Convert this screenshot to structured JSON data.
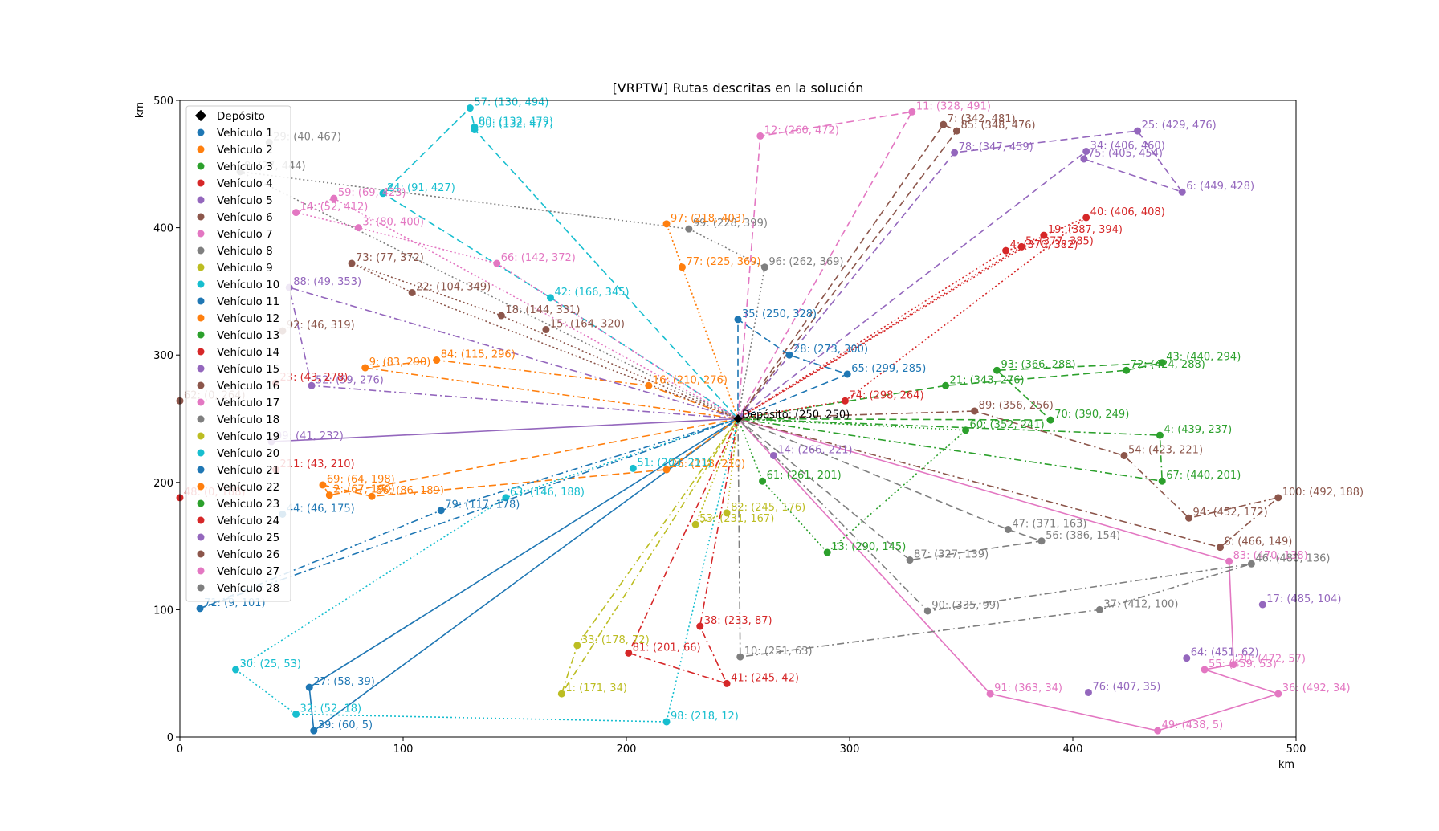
{
  "chart_data": {
    "type": "scatter",
    "title": "[VRPTW] Rutas descritas en la solución",
    "xlabel": "km",
    "ylabel": "km",
    "xlim": [
      0,
      500
    ],
    "ylim": [
      0,
      500
    ],
    "x_ticks": [
      0,
      100,
      200,
      300,
      400,
      500
    ],
    "y_ticks": [
      0,
      100,
      200,
      300,
      400,
      500
    ],
    "grid": false,
    "legend_position": "top-left",
    "depot": {
      "name": "Depósito",
      "label": "Depósito: (250, 250)",
      "x": 250,
      "y": 250,
      "color": "#000000"
    },
    "styles": [
      "solid",
      "dashed",
      "dotted",
      "dashdot"
    ],
    "series": [
      {
        "name": "Vehículo 1",
        "color": "#1f77b4",
        "style": "solid",
        "stops": [
          {
            "id": 27,
            "x": 58,
            "y": 39
          },
          {
            "id": 39,
            "x": 60,
            "y": 5
          }
        ]
      },
      {
        "name": "Vehículo 2",
        "color": "#ff7f0e",
        "style": "dashed",
        "stops": [
          {
            "id": 2,
            "x": 67,
            "y": 190
          },
          {
            "id": 69,
            "x": 64,
            "y": 198
          },
          {
            "id": 86,
            "x": 86,
            "y": 189
          },
          {
            "id": 26,
            "x": 218,
            "y": 210
          }
        ]
      },
      {
        "name": "Vehículo 3",
        "color": "#2ca02c",
        "style": "dotted",
        "stops": [
          {
            "id": 61,
            "x": 261,
            "y": 201
          },
          {
            "id": 13,
            "x": 290,
            "y": 145
          },
          {
            "id": 60,
            "x": 352,
            "y": 241
          }
        ]
      },
      {
        "name": "Vehículo 4",
        "color": "#d62728",
        "style": "dashdot",
        "stops": [
          {
            "id": 81,
            "x": 201,
            "y": 66
          },
          {
            "id": 41,
            "x": 245,
            "y": 42
          },
          {
            "id": 38,
            "x": 233,
            "y": 87
          }
        ]
      },
      {
        "name": "Vehículo 5",
        "color": "#9467bd",
        "style": "solid",
        "stops": [
          {
            "id": 99,
            "x": 41,
            "y": 232
          }
        ]
      },
      {
        "name": "Vehículo 6",
        "color": "#8c564b",
        "style": "dashed",
        "stops": [
          {
            "id": 7,
            "x": 342,
            "y": 481
          },
          {
            "id": 85,
            "x": 348,
            "y": 476
          }
        ]
      },
      {
        "name": "Vehículo 7",
        "color": "#e377c2",
        "style": "solid",
        "stops": [
          {
            "id": 83,
            "x": 470,
            "y": 138
          },
          {
            "id": 20,
            "x": 472,
            "y": 57
          },
          {
            "id": 55,
            "x": 459,
            "y": 53
          },
          {
            "id": 36,
            "x": 492,
            "y": 34
          },
          {
            "id": 49,
            "x": 438,
            "y": 5
          },
          {
            "id": 91,
            "x": 363,
            "y": 34
          }
        ]
      },
      {
        "name": "Vehículo 8",
        "color": "#7f7f7f",
        "style": "dashed",
        "stops": [
          {
            "id": 47,
            "x": 371,
            "y": 163
          },
          {
            "id": 56,
            "x": 386,
            "y": 154
          },
          {
            "id": 87,
            "x": 327,
            "y": 139
          }
        ]
      },
      {
        "name": "Vehículo 9",
        "color": "#bcbd22",
        "style": "dashdot",
        "stops": [
          {
            "id": 33,
            "x": 178,
            "y": 72
          },
          {
            "id": 1,
            "x": 171,
            "y": 34
          }
        ]
      },
      {
        "name": "Vehículo 10",
        "color": "#17becf",
        "style": "dashed",
        "stops": [
          {
            "id": 42,
            "x": 166,
            "y": 345
          },
          {
            "id": 24,
            "x": 91,
            "y": 427
          },
          {
            "id": 57,
            "x": 130,
            "y": 494
          },
          {
            "id": 80,
            "x": 132,
            "y": 479
          },
          {
            "id": 90,
            "x": 132,
            "y": 477
          }
        ]
      },
      {
        "name": "Vehículo 11",
        "color": "#1f77b4",
        "style": "dashed",
        "stops": [
          {
            "id": 65,
            "x": 299,
            "y": 285
          },
          {
            "id": 28,
            "x": 273,
            "y": 300
          },
          {
            "id": 35,
            "x": 250,
            "y": 328
          }
        ]
      },
      {
        "name": "Vehículo 12",
        "color": "#ff7f0e",
        "style": "dashdot",
        "stops": [
          {
            "id": 16,
            "x": 210,
            "y": 276
          },
          {
            "id": 84,
            "x": 115,
            "y": 296
          },
          {
            "id": 9,
            "x": 83,
            "y": 290
          }
        ]
      },
      {
        "name": "Vehículo 13",
        "color": "#2ca02c",
        "style": "dashed",
        "stops": [
          {
            "id": 21,
            "x": 343,
            "y": 276
          },
          {
            "id": 72,
            "x": 424,
            "y": 288
          },
          {
            "id": 43,
            "x": 440,
            "y": 294
          },
          {
            "id": 93,
            "x": 366,
            "y": 288
          },
          {
            "id": 70,
            "x": 390,
            "y": 249
          }
        ]
      },
      {
        "name": "Vehículo 14",
        "color": "#d62728",
        "style": "dotted",
        "stops": [
          {
            "id": 74,
            "x": 298,
            "y": 264
          },
          {
            "id": 40,
            "x": 406,
            "y": 408
          },
          {
            "id": 19,
            "x": 387,
            "y": 394
          }
        ]
      },
      {
        "name": "Vehículo 15",
        "color": "#9467bd",
        "style": "dashdot",
        "stops": [
          {
            "id": 88,
            "x": 49,
            "y": 353
          },
          {
            "id": 52,
            "x": 59,
            "y": 276
          }
        ]
      },
      {
        "name": "Vehículo 16",
        "color": "#8c564b",
        "style": "dotted",
        "stops": [
          {
            "id": 18,
            "x": 144,
            "y": 331
          },
          {
            "id": 73,
            "x": 77,
            "y": 372
          },
          {
            "id": 22,
            "x": 104,
            "y": 349
          }
        ]
      },
      {
        "name": "Vehículo 17",
        "color": "#e377c2",
        "style": "dotted",
        "stops": [
          {
            "id": 66,
            "x": 142,
            "y": 372
          },
          {
            "id": 3,
            "x": 80,
            "y": 400
          },
          {
            "id": 14,
            "x": 52,
            "y": 412
          },
          {
            "id": 59,
            "x": 69,
            "y": 423
          }
        ]
      },
      {
        "name": "Vehículo 18",
        "color": "#7f7f7f",
        "style": "dotted",
        "stops": [
          {
            "id": 96,
            "x": 262,
            "y": 369
          },
          {
            "id": 99,
            "x": 228,
            "y": 399
          },
          {
            "id": 8,
            "x": 27,
            "y": 444
          }
        ]
      },
      {
        "name": "Vehículo 19",
        "color": "#bcbd22",
        "style": "dotted",
        "stops": [
          {
            "id": 82,
            "x": 245,
            "y": 176
          },
          {
            "id": 53,
            "x": 231,
            "y": 167
          }
        ]
      },
      {
        "name": "Vehículo 20",
        "color": "#17becf",
        "style": "dotted",
        "stops": [
          {
            "id": 63,
            "x": 146,
            "y": 188
          },
          {
            "id": 30,
            "x": 25,
            "y": 53
          },
          {
            "id": 32,
            "x": 52,
            "y": 18
          },
          {
            "id": 98,
            "x": 218,
            "y": 12
          }
        ]
      },
      {
        "name": "Vehículo 21",
        "color": "#1f77b4",
        "style": "dashdot",
        "stops": [
          {
            "id": 79,
            "x": 117,
            "y": 178
          },
          {
            "id": 71,
            "x": 9,
            "y": 101
          }
        ]
      },
      {
        "name": "Vehículo 22",
        "color": "#ff7f0e",
        "style": "dotted",
        "stops": [
          {
            "id": 77,
            "x": 225,
            "y": 369
          },
          {
            "id": 97,
            "x": 218,
            "y": 403
          }
        ]
      },
      {
        "name": "Vehículo 23",
        "color": "#2ca02c",
        "style": "dashdot",
        "stops": [
          {
            "id": 4,
            "x": 439,
            "y": 237
          },
          {
            "id": 67,
            "x": 440,
            "y": 201
          }
        ]
      },
      {
        "name": "Vehículo 24",
        "color": "#d62728",
        "style": "dotted",
        "stops": [
          {
            "id": 5,
            "x": 377,
            "y": 385
          },
          {
            "id": 4,
            "x": 370,
            "y": 382
          }
        ]
      },
      {
        "name": "Vehículo 25",
        "color": "#9467bd",
        "style": "dashed",
        "stops": [
          {
            "id": 78,
            "x": 347,
            "y": 459
          },
          {
            "id": 25,
            "x": 429,
            "y": 476
          },
          {
            "id": 6,
            "x": 449,
            "y": 428
          },
          {
            "id": 75,
            "x": 405,
            "y": 454
          },
          {
            "id": 34,
            "x": 406,
            "y": 460
          }
        ]
      },
      {
        "name": "Vehículo 26",
        "color": "#8c564b",
        "style": "dashdot",
        "stops": [
          {
            "id": 89,
            "x": 356,
            "y": 256
          },
          {
            "id": 54,
            "x": 423,
            "y": 221
          },
          {
            "id": 94,
            "x": 452,
            "y": 172
          },
          {
            "id": 100,
            "x": 492,
            "y": 188
          },
          {
            "id": 8,
            "x": 466,
            "y": 149
          }
        ]
      },
      {
        "name": "Vehículo 27",
        "color": "#e377c2",
        "style": "dashed",
        "stops": [
          {
            "id": 12,
            "x": 260,
            "y": 472
          },
          {
            "id": 11,
            "x": 328,
            "y": 491
          }
        ]
      },
      {
        "name": "Vehículo 28",
        "color": "#7f7f7f",
        "style": "dashdot",
        "stops": [
          {
            "id": 10,
            "x": 251,
            "y": 63
          },
          {
            "id": 37,
            "x": 412,
            "y": 100
          },
          {
            "id": 46,
            "x": 480,
            "y": 136
          },
          {
            "id": 90,
            "x": 335,
            "y": 99
          }
        ]
      }
    ],
    "extra_points": [
      {
        "label": "17: (485, 104)",
        "x": 485,
        "y": 104,
        "color": "#9467bd"
      },
      {
        "label": "64: (451, 62)",
        "x": 451,
        "y": 62,
        "color": "#9467bd"
      },
      {
        "label": "76: (407, 35)",
        "x": 407,
        "y": 35,
        "color": "#9467bd"
      },
      {
        "label": "15: (164, 320)",
        "x": 164,
        "y": 320,
        "color": "#8c564b"
      },
      {
        "label": "51: (203, 211)",
        "x": 203,
        "y": 211,
        "color": "#17becf"
      },
      {
        "label": "14: (266, 221)",
        "x": 266,
        "y": 221,
        "color": "#9467bd"
      },
      {
        "label": "48: (0, 188)",
        "x": 0,
        "y": 188,
        "color": "#d62728"
      },
      {
        "label": "211: (43, 210)",
        "x": 43,
        "y": 210,
        "color": "#d62728"
      },
      {
        "label": "23: (43, 278)",
        "x": 43,
        "y": 278,
        "color": "#d62728"
      },
      {
        "label": "62: (0, 264)",
        "x": 0,
        "y": 264,
        "color": "#8c564b"
      },
      {
        "label": "92: (46, 319)",
        "x": 46,
        "y": 319,
        "color": "#8c564b"
      },
      {
        "label": "44: (46, 175)",
        "x": 46,
        "y": 175,
        "color": "#1f77b4"
      },
      {
        "label": "29: (40, 467)",
        "x": 40,
        "y": 467,
        "color": "#7f7f7f"
      }
    ]
  }
}
